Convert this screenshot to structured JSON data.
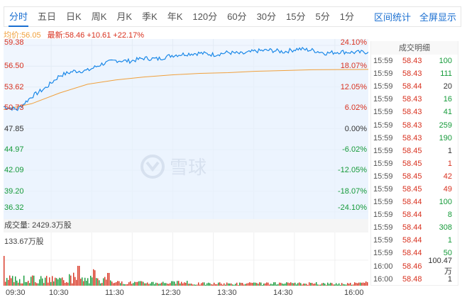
{
  "tabs": {
    "items": [
      "分时",
      "五日",
      "日K",
      "周K",
      "月K",
      "季K",
      "年K",
      "120分",
      "60分",
      "30分",
      "15分",
      "5分",
      "1分"
    ],
    "active": 0,
    "links": [
      "区间统计",
      "全屏显示"
    ]
  },
  "info": {
    "avg_label": "均价:56.05",
    "last_label": "最新:58.46 +10.61 +22.17%"
  },
  "chart_data": {
    "type": "line",
    "title": "分时",
    "y_price_ticks": [
      "59.38",
      "56.50",
      "53.62",
      "50.73",
      "47.85",
      "44.97",
      "42.09",
      "39.20",
      "36.32"
    ],
    "y_pct_ticks": [
      "24.10%",
      "18.07%",
      "12.05%",
      "6.02%",
      "0.00%",
      "-6.02%",
      "-12.05%",
      "-18.07%",
      "-24.10%"
    ],
    "x_ticks": [
      "09:30",
      "10:30",
      "11:30",
      "12:30",
      "13:30",
      "14:30",
      "16:00"
    ],
    "ylim": [
      36.32,
      59.38
    ],
    "prev_close": 47.85,
    "series": [
      {
        "name": "价格",
        "color": "#1a88e8",
        "x": [
          "09:30",
          "09:45",
          "10:00",
          "10:15",
          "10:30",
          "10:45",
          "11:00",
          "11:15",
          "11:30",
          "11:45",
          "12:00",
          "12:15",
          "12:30",
          "12:45",
          "13:00",
          "13:15",
          "13:30",
          "13:45",
          "14:00",
          "14:15",
          "14:30",
          "14:45",
          "15:00",
          "15:15",
          "15:30",
          "15:45",
          "16:00"
        ],
        "values": [
          50.9,
          50.5,
          52.3,
          53.5,
          55.2,
          55.8,
          55.9,
          56.8,
          57.3,
          57.2,
          57.6,
          57.5,
          58.0,
          58.2,
          58.3,
          58.1,
          58.4,
          58.2,
          58.6,
          58.7,
          58.5,
          58.9,
          58.7,
          58.3,
          58.5,
          58.4,
          58.46
        ]
      },
      {
        "name": "均价",
        "color": "#f0a03c",
        "x": [
          "09:30",
          "10:00",
          "10:30",
          "11:00",
          "11:30",
          "12:00",
          "12:30",
          "13:00",
          "13:30",
          "14:00",
          "14:30",
          "15:00",
          "15:30",
          "16:00"
        ],
        "values": [
          50.5,
          51.3,
          52.8,
          54.0,
          54.6,
          55.0,
          55.3,
          55.5,
          55.6,
          55.8,
          55.9,
          56.0,
          56.03,
          56.05
        ]
      }
    ],
    "volume": {
      "label": "成交量: 2429.3万股",
      "max_label": "133.67万股"
    },
    "grid": true
  },
  "trades": {
    "header": "成交明细",
    "rows": [
      {
        "time": "15:59",
        "price": "58.43",
        "vol": "100",
        "side": "sell"
      },
      {
        "time": "15:59",
        "price": "58.43",
        "vol": "111",
        "side": "sell"
      },
      {
        "time": "15:59",
        "price": "58.44",
        "vol": "20",
        "side": "neu"
      },
      {
        "time": "15:59",
        "price": "58.43",
        "vol": "16",
        "side": "sell"
      },
      {
        "time": "15:59",
        "price": "58.43",
        "vol": "41",
        "side": "sell"
      },
      {
        "time": "15:59",
        "price": "58.43",
        "vol": "259",
        "side": "sell"
      },
      {
        "time": "15:59",
        "price": "58.43",
        "vol": "190",
        "side": "sell"
      },
      {
        "time": "15:59",
        "price": "58.45",
        "vol": "1",
        "side": "neu"
      },
      {
        "time": "15:59",
        "price": "58.45",
        "vol": "1",
        "side": "buy"
      },
      {
        "time": "15:59",
        "price": "58.45",
        "vol": "42",
        "side": "buy"
      },
      {
        "time": "15:59",
        "price": "58.45",
        "vol": "49",
        "side": "buy"
      },
      {
        "time": "15:59",
        "price": "58.44",
        "vol": "100",
        "side": "sell"
      },
      {
        "time": "15:59",
        "price": "58.44",
        "vol": "8",
        "side": "sell"
      },
      {
        "time": "15:59",
        "price": "58.44",
        "vol": "308",
        "side": "sell"
      },
      {
        "time": "15:59",
        "price": "58.44",
        "vol": "1",
        "side": "sell"
      },
      {
        "time": "15:59",
        "price": "58.44",
        "vol": "50",
        "side": "sell"
      },
      {
        "time": "16:00",
        "price": "58.46",
        "vol": "100.47万",
        "side": "neu"
      },
      {
        "time": "16:00",
        "price": "58.48",
        "vol": "1",
        "side": "neu"
      }
    ]
  },
  "watermark": "雪球",
  "colors": {
    "accent": "#1a6fd1",
    "up": "#d8311f",
    "down": "#159a39",
    "avg": "#f0a03c",
    "price": "#1a88e8"
  }
}
